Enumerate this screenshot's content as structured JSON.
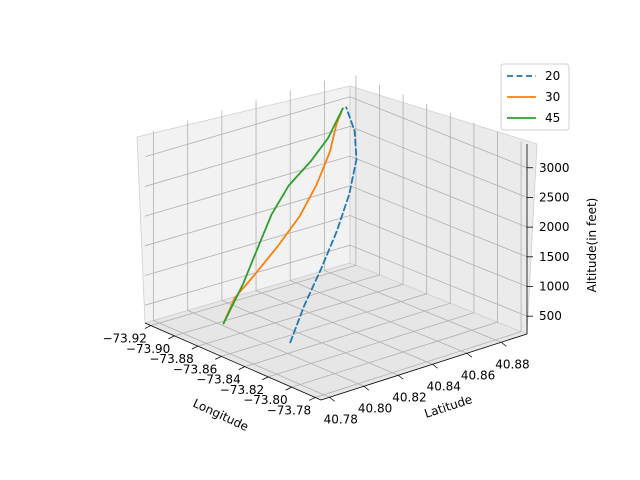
{
  "chart_data": {
    "type": "line",
    "projection": "3d",
    "title": "",
    "xlabel": "Longitude",
    "ylabel": "Latitude",
    "zlabel": "Altitude(in feet)",
    "x_ticks": [
      "−73.92",
      "−73.90",
      "−73.88",
      "−73.86",
      "−73.84",
      "−73.82",
      "−73.80",
      "−73.78"
    ],
    "y_ticks": [
      "40.78",
      "40.80",
      "40.82",
      "40.84",
      "40.86",
      "40.88"
    ],
    "z_ticks": [
      "500",
      "1000",
      "1500",
      "2000",
      "2500",
      "3000"
    ],
    "grid": true,
    "legend_position": "top-right",
    "series": [
      {
        "name": "20",
        "color": "#1f77b4",
        "linestyle": "dashed",
        "points": [
          [
            -73.845,
            40.805,
            300
          ],
          [
            -73.855,
            40.82,
            700
          ],
          [
            -73.862,
            40.835,
            1150
          ],
          [
            -73.868,
            40.848,
            1600
          ],
          [
            -73.872,
            40.858,
            2100
          ],
          [
            -73.876,
            40.865,
            2600
          ],
          [
            -73.882,
            40.868,
            3000
          ],
          [
            -73.892,
            40.87,
            3300
          ]
        ]
      },
      {
        "name": "30",
        "color": "#ff7f0e",
        "linestyle": "solid",
        "points": [
          [
            -73.88,
            40.79,
            450
          ],
          [
            -73.885,
            40.8,
            750
          ],
          [
            -73.885,
            40.812,
            1050
          ],
          [
            -73.885,
            40.825,
            1400
          ],
          [
            -73.885,
            40.838,
            1800
          ],
          [
            -73.885,
            40.848,
            2250
          ],
          [
            -73.887,
            40.857,
            2700
          ],
          [
            -73.89,
            40.863,
            3100
          ],
          [
            -73.892,
            40.868,
            3300
          ]
        ]
      },
      {
        "name": "45",
        "color": "#2ca02c",
        "linestyle": "solid",
        "points": [
          [
            -73.88,
            40.79,
            450
          ],
          [
            -73.882,
            40.795,
            600
          ],
          [
            -73.885,
            40.805,
            950
          ],
          [
            -73.888,
            40.815,
            1400
          ],
          [
            -73.89,
            40.825,
            1900
          ],
          [
            -73.89,
            40.835,
            2300
          ],
          [
            -73.89,
            40.848,
            2600
          ],
          [
            -73.89,
            40.858,
            2900
          ],
          [
            -73.892,
            40.868,
            3300
          ]
        ]
      }
    ]
  }
}
